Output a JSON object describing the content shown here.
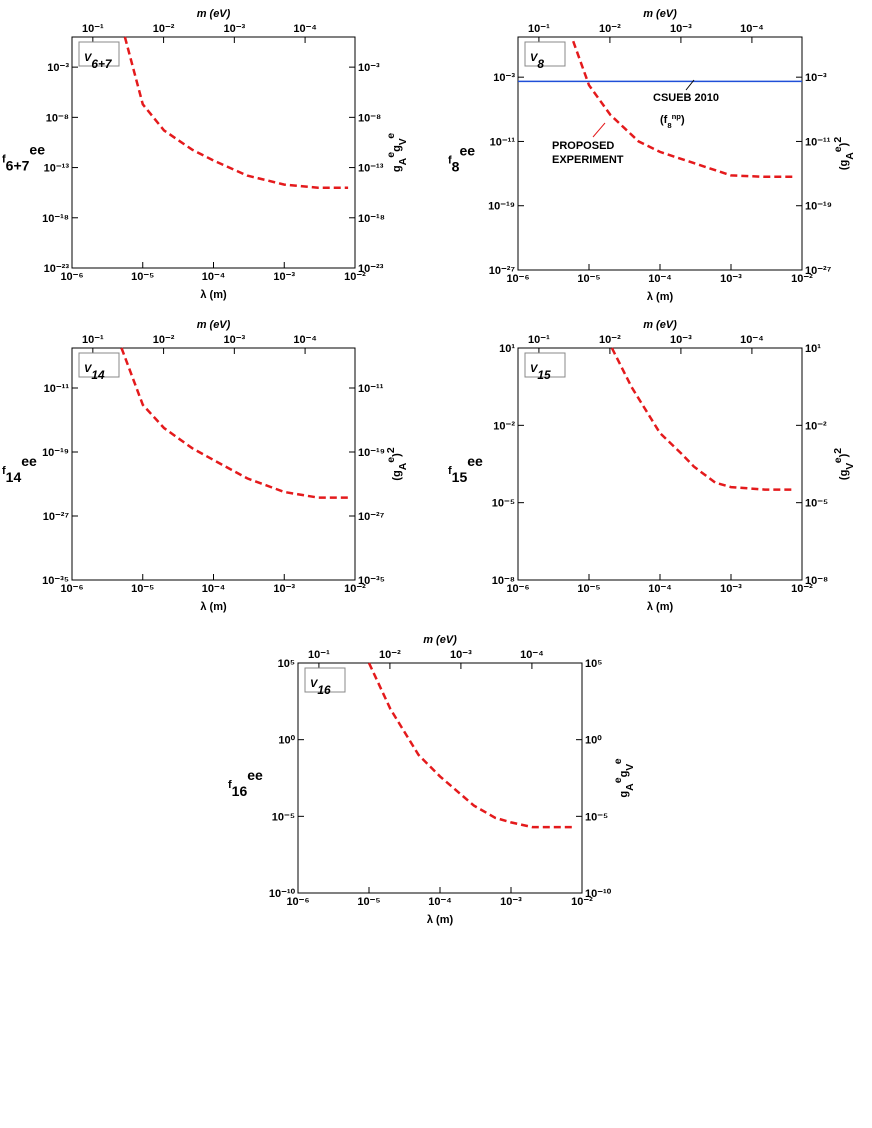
{
  "chart_data": [
    {
      "type": "line",
      "panel": [
        {
          "base": "V",
          "sub": "6+7"
        }
      ],
      "xlabel": "λ (m)",
      "x2label": "m (eV)",
      "xscale": "log",
      "yscale": "log",
      "xlim": [
        1e-06,
        0.01
      ],
      "xticks": [
        {
          "value": 1e-06,
          "label": "10⁻⁶"
        },
        {
          "value": 1e-05,
          "label": "10⁻⁵"
        },
        {
          "value": 0.0001,
          "label": "10⁻⁴"
        },
        {
          "value": 0.001,
          "label": "10⁻³"
        },
        {
          "value": 0.01,
          "label": "10⁻²"
        }
      ],
      "x2lim": [
        0.197,
        1.97e-05
      ],
      "x2ticks": [
        {
          "value": 0.1,
          "label": "10⁻¹"
        },
        {
          "value": 0.01,
          "label": "10⁻²"
        },
        {
          "value": 0.001,
          "label": "10⁻³"
        },
        {
          "value": 0.0001,
          "label": "10⁻⁴"
        }
      ],
      "ylim": [
        1e-23,
        1
      ],
      "yticks": [
        {
          "value": 1e-23,
          "label": "10⁻²³"
        },
        {
          "value": 1e-18,
          "label": "10⁻¹⁸"
        },
        {
          "value": 1e-13,
          "label": "10⁻¹³"
        },
        {
          "value": 1e-08,
          "label": "10⁻⁸"
        },
        {
          "value": 0.001,
          "label": "10⁻³"
        }
      ],
      "ylabel": [
        {
          "base": "f",
          "sub": "6+7",
          "sup": "ee"
        }
      ],
      "y2label": [
        {
          "base": "g",
          "sub": "A",
          "sup": "e"
        },
        {
          "base": "g",
          "sub": "V",
          "sup": "e"
        }
      ],
      "series": [
        {
          "color": "#e41a1c",
          "linestyle": "dashed",
          "x": [
            5.6e-06,
            1e-05,
            2e-05,
            5e-05,
            0.0001,
            0.0003,
            0.001,
            0.003,
            0.008
          ],
          "values": [
            1,
            2e-07,
            5e-10,
            6e-12,
            5e-13,
            1.6e-14,
            2e-15,
            1e-15,
            1e-15
          ]
        }
      ]
    },
    {
      "type": "line",
      "panel": [
        {
          "base": "V",
          "sub": "8"
        }
      ],
      "xlabel": "λ (m)",
      "x2label": "m (eV)",
      "xscale": "log",
      "yscale": "log",
      "xlim": [
        1e-06,
        0.01
      ],
      "xticks": [
        {
          "value": 1e-06,
          "label": "10⁻⁶"
        },
        {
          "value": 1e-05,
          "label": "10⁻⁵"
        },
        {
          "value": 0.0001,
          "label": "10⁻⁴"
        },
        {
          "value": 0.001,
          "label": "10⁻³"
        },
        {
          "value": 0.01,
          "label": "10⁻²"
        }
      ],
      "x2lim": [
        0.197,
        1.97e-05
      ],
      "x2ticks": [
        {
          "value": 0.1,
          "label": "10⁻¹"
        },
        {
          "value": 0.01,
          "label": "10⁻²"
        },
        {
          "value": 0.001,
          "label": "10⁻³"
        },
        {
          "value": 0.0001,
          "label": "10⁻⁴"
        }
      ],
      "ylim": [
        1e-27,
        100
      ],
      "yticks": [
        {
          "value": 1e-27,
          "label": "10⁻²⁷"
        },
        {
          "value": 1e-19,
          "label": "10⁻¹⁹"
        },
        {
          "value": 1e-11,
          "label": "10⁻¹¹"
        },
        {
          "value": 0.001,
          "label": "10⁻³"
        }
      ],
      "ylabel": [
        {
          "base": "f",
          "sub": "8",
          "sup": "ee"
        }
      ],
      "y2label": [
        {
          "base": "(g",
          "sub": "A",
          "sup": "e"
        },
        {
          "base": ")",
          "sup": "2"
        }
      ],
      "annotation": [
        {
          "base": "(f",
          "sub": "8",
          "sup": "np"
        },
        {
          "base": ")"
        }
      ],
      "series": [
        {
          "name": "PROPOSED EXPERIMENT",
          "color": "#e41a1c",
          "linestyle": "dashed",
          "x": [
            6e-06,
            1e-05,
            2e-05,
            5e-05,
            0.0001,
            0.0003,
            0.001,
            0.003,
            0.008
          ],
          "values": [
            30,
            0.0001,
            2e-08,
            1e-11,
            5e-13,
            2e-14,
            6e-16,
            4e-16,
            4e-16
          ]
        },
        {
          "name": "CSUEB 2010",
          "color": "#1f4fd8",
          "linestyle": "solid",
          "x": [
            1e-06,
            0.01
          ],
          "values": [
            0.0003,
            0.0003
          ]
        }
      ]
    },
    {
      "type": "line",
      "panel": [
        {
          "base": "V",
          "sub": "14"
        }
      ],
      "xlabel": "λ (m)",
      "x2label": "m (eV)",
      "xscale": "log",
      "yscale": "log",
      "xlim": [
        1e-06,
        0.01
      ],
      "xticks": [
        {
          "value": 1e-06,
          "label": "10⁻⁶"
        },
        {
          "value": 1e-05,
          "label": "10⁻⁵"
        },
        {
          "value": 0.0001,
          "label": "10⁻⁴"
        },
        {
          "value": 0.001,
          "label": "10⁻³"
        },
        {
          "value": 0.01,
          "label": "10⁻²"
        }
      ],
      "x2lim": [
        0.197,
        1.97e-05
      ],
      "x2ticks": [
        {
          "value": 0.1,
          "label": "10⁻¹"
        },
        {
          "value": 0.01,
          "label": "10⁻²"
        },
        {
          "value": 0.001,
          "label": "10⁻³"
        },
        {
          "value": 0.0001,
          "label": "10⁻⁴"
        }
      ],
      "ylim": [
        1e-35,
        1e-06
      ],
      "yticks": [
        {
          "value": 1e-35,
          "label": "10⁻³⁵"
        },
        {
          "value": 1e-27,
          "label": "10⁻²⁷"
        },
        {
          "value": 1e-19,
          "label": "10⁻¹⁹"
        },
        {
          "value": 1e-11,
          "label": "10⁻¹¹"
        }
      ],
      "ylabel": [
        {
          "base": "f",
          "sub": "14",
          "sup": "ee"
        }
      ],
      "y2label": [
        {
          "base": "(g",
          "sub": "A",
          "sup": "e"
        },
        {
          "base": ")",
          "sup": "2"
        }
      ],
      "series": [
        {
          "color": "#e41a1c",
          "linestyle": "dashed",
          "x": [
            5e-06,
            1e-05,
            2e-05,
            5e-05,
            0.0001,
            0.0003,
            0.001,
            0.003,
            0.008
          ],
          "values": [
            1e-06,
            8e-14,
            1e-16,
            3e-19,
            1e-20,
            5e-23,
            1e-24,
            2e-25,
            2e-25
          ]
        }
      ]
    },
    {
      "type": "line",
      "panel": [
        {
          "base": "V",
          "sub": "15"
        }
      ],
      "xlabel": "λ (m)",
      "x2label": "m (eV)",
      "xscale": "log",
      "yscale": "log",
      "xlim": [
        1e-06,
        0.01
      ],
      "xticks": [
        {
          "value": 1e-06,
          "label": "10⁻⁶"
        },
        {
          "value": 1e-05,
          "label": "10⁻⁵"
        },
        {
          "value": 0.0001,
          "label": "10⁻⁴"
        },
        {
          "value": 0.001,
          "label": "10⁻³"
        },
        {
          "value": 0.01,
          "label": "10⁻²"
        }
      ],
      "x2lim": [
        0.197,
        1.97e-05
      ],
      "x2ticks": [
        {
          "value": 0.1,
          "label": "10⁻¹"
        },
        {
          "value": 0.01,
          "label": "10⁻²"
        },
        {
          "value": 0.001,
          "label": "10⁻³"
        },
        {
          "value": 0.0001,
          "label": "10⁻⁴"
        }
      ],
      "ylim": [
        1e-08,
        10
      ],
      "yticks": [
        {
          "value": 1e-08,
          "label": "10⁻⁸"
        },
        {
          "value": 1e-05,
          "label": "10⁻⁵"
        },
        {
          "value": 0.01,
          "label": "10⁻²"
        },
        {
          "value": 10,
          "label": "10¹"
        }
      ],
      "ylabel": [
        {
          "base": "f",
          "sub": "15",
          "sup": "ee"
        }
      ],
      "y2label": [
        {
          "base": "(g",
          "sub": "V",
          "sup": "e"
        },
        {
          "base": ")",
          "sup": "2"
        }
      ],
      "series": [
        {
          "color": "#e41a1c",
          "linestyle": "dashed",
          "x": [
            2.1e-05,
            4e-05,
            0.0001,
            0.0002,
            0.0003,
            0.0006,
            0.001,
            0.003,
            0.008
          ],
          "values": [
            10,
            0.3,
            0.005,
            0.0008,
            0.00025,
            6e-05,
            4e-05,
            3.2e-05,
            3.2e-05
          ]
        }
      ]
    },
    {
      "type": "line",
      "panel": [
        {
          "base": "V",
          "sub": "16"
        }
      ],
      "xlabel": "λ (m)",
      "x2label": "m (eV)",
      "xscale": "log",
      "yscale": "log",
      "xlim": [
        1e-06,
        0.01
      ],
      "xticks": [
        {
          "value": 1e-06,
          "label": "10⁻⁶"
        },
        {
          "value": 1e-05,
          "label": "10⁻⁵"
        },
        {
          "value": 0.0001,
          "label": "10⁻⁴"
        },
        {
          "value": 0.001,
          "label": "10⁻³"
        },
        {
          "value": 0.01,
          "label": "10⁻²"
        }
      ],
      "x2lim": [
        0.197,
        1.97e-05
      ],
      "x2ticks": [
        {
          "value": 0.1,
          "label": "10⁻¹"
        },
        {
          "value": 0.01,
          "label": "10⁻²"
        },
        {
          "value": 0.001,
          "label": "10⁻³"
        },
        {
          "value": 0.0001,
          "label": "10⁻⁴"
        }
      ],
      "ylim": [
        1e-10,
        100000
      ],
      "yticks": [
        {
          "value": 1e-10,
          "label": "10⁻¹⁰"
        },
        {
          "value": 1e-05,
          "label": "10⁻⁵"
        },
        {
          "value": 1,
          "label": "10⁰"
        },
        {
          "value": 100000,
          "label": "10⁵"
        }
      ],
      "ylabel": [
        {
          "base": "f",
          "sub": "16",
          "sup": "ee"
        }
      ],
      "y2label": [
        {
          "base": "g",
          "sub": "A",
          "sup": "e"
        },
        {
          "base": "g",
          "sub": "V",
          "sup": "e"
        }
      ],
      "series": [
        {
          "color": "#e41a1c",
          "linestyle": "dashed",
          "x": [
            1e-05,
            2e-05,
            5e-05,
            0.0001,
            0.0003,
            0.0006,
            0.001,
            0.002,
            0.008
          ],
          "values": [
            100000,
            100,
            0.1,
            0.004,
            5e-05,
            8e-06,
            4e-06,
            2e-06,
            2e-06
          ]
        }
      ]
    }
  ]
}
